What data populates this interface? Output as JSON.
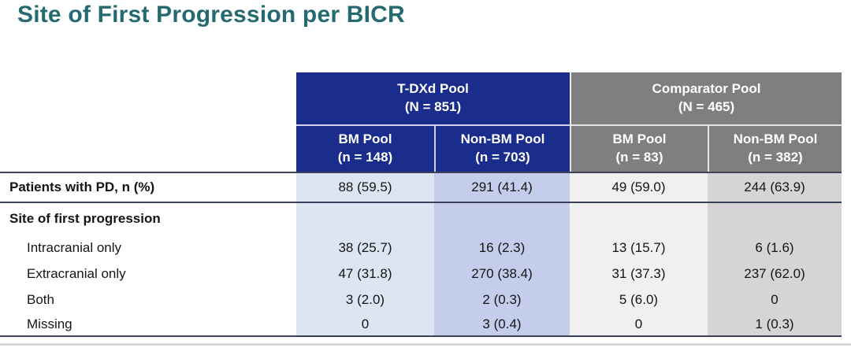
{
  "title": "Site of First Progression per BICR",
  "colors": {
    "title_teal": "#266a71",
    "tdxd_blue": "#1a2c8c",
    "comparator_gray": "#7f7f7f",
    "bm_tdxd_bg": "#dce6f3",
    "nonbm_tdxd_bg": "#c4cdeb",
    "bm_comp_bg": "#f0f0f0",
    "nonbm_comp_bg": "#d6d4d6",
    "rule": "#3a4158"
  },
  "chart_data": {
    "type": "table",
    "title": "Site of First Progression per BICR",
    "column_groups": [
      {
        "label": "T-DXd Pool",
        "n": "(N = 851)"
      },
      {
        "label": "Comparator Pool",
        "n": "(N = 465)"
      }
    ],
    "columns": [
      {
        "group": "T-DXd Pool",
        "label": "BM Pool",
        "n": "(n = 148)"
      },
      {
        "group": "T-DXd Pool",
        "label": "Non-BM Pool",
        "n": "(n = 703)"
      },
      {
        "group": "Comparator Pool",
        "label": "BM Pool",
        "n": "(n = 83)"
      },
      {
        "group": "Comparator Pool",
        "label": "Non-BM Pool",
        "n": "(n = 382)"
      }
    ],
    "rows": [
      {
        "label": "Patients with PD, n (%)",
        "values": [
          "88 (59.5)",
          "291 (41.4)",
          "49 (59.0)",
          "244 (63.9)"
        ]
      },
      {
        "label": "Site of first progression",
        "values": [
          "",
          "",
          "",
          ""
        ]
      },
      {
        "label": "Intracranial only",
        "values": [
          "38 (25.7)",
          "16 (2.3)",
          "13 (15.7)",
          "6 (1.6)"
        ]
      },
      {
        "label": "Extracranial only",
        "values": [
          "47 (31.8)",
          "270 (38.4)",
          "31 (37.3)",
          "237 (62.0)"
        ]
      },
      {
        "label": "Both",
        "values": [
          "3 (2.0)",
          "2 (0.3)",
          "5 (6.0)",
          "0"
        ]
      },
      {
        "label": "Missing",
        "values": [
          "0",
          "3 (0.4)",
          "0",
          "1 (0.3)"
        ]
      }
    ]
  },
  "table": {
    "groups": [
      {
        "label": "T-DXd Pool",
        "n": "(N = 851)"
      },
      {
        "label": "Comparator Pool",
        "n": "(N = 465)"
      }
    ],
    "columns": [
      {
        "label": "BM Pool",
        "n": "(n = 148)"
      },
      {
        "label": "Non-BM Pool",
        "n": "(n = 703)"
      },
      {
        "label": "BM Pool",
        "n": "(n = 83)"
      },
      {
        "label": "Non-BM Pool",
        "n": "(n = 382)"
      }
    ],
    "rows": [
      {
        "label": "Patients with PD, n (%)",
        "style": "main",
        "values": [
          "88 (59.5)",
          "291 (41.4)",
          "49 (59.0)",
          "244 (63.9)"
        ]
      },
      {
        "label": "Site of first progression",
        "style": "section",
        "values": [
          "",
          "",
          "",
          ""
        ]
      },
      {
        "label": "Intracranial only",
        "style": "item",
        "values": [
          "38 (25.7)",
          "16 (2.3)",
          "13 (15.7)",
          "6 (1.6)"
        ]
      },
      {
        "label": "Extracranial only",
        "style": "item",
        "values": [
          "47 (31.8)",
          "270 (38.4)",
          "31 (37.3)",
          "237 (62.0)"
        ]
      },
      {
        "label": "Both",
        "style": "item",
        "values": [
          "3 (2.0)",
          "2 (0.3)",
          "5 (6.0)",
          "0"
        ]
      },
      {
        "label": "Missing",
        "style": "item",
        "values": [
          "0",
          "3 (0.4)",
          "0",
          "1 (0.3)"
        ]
      }
    ]
  }
}
